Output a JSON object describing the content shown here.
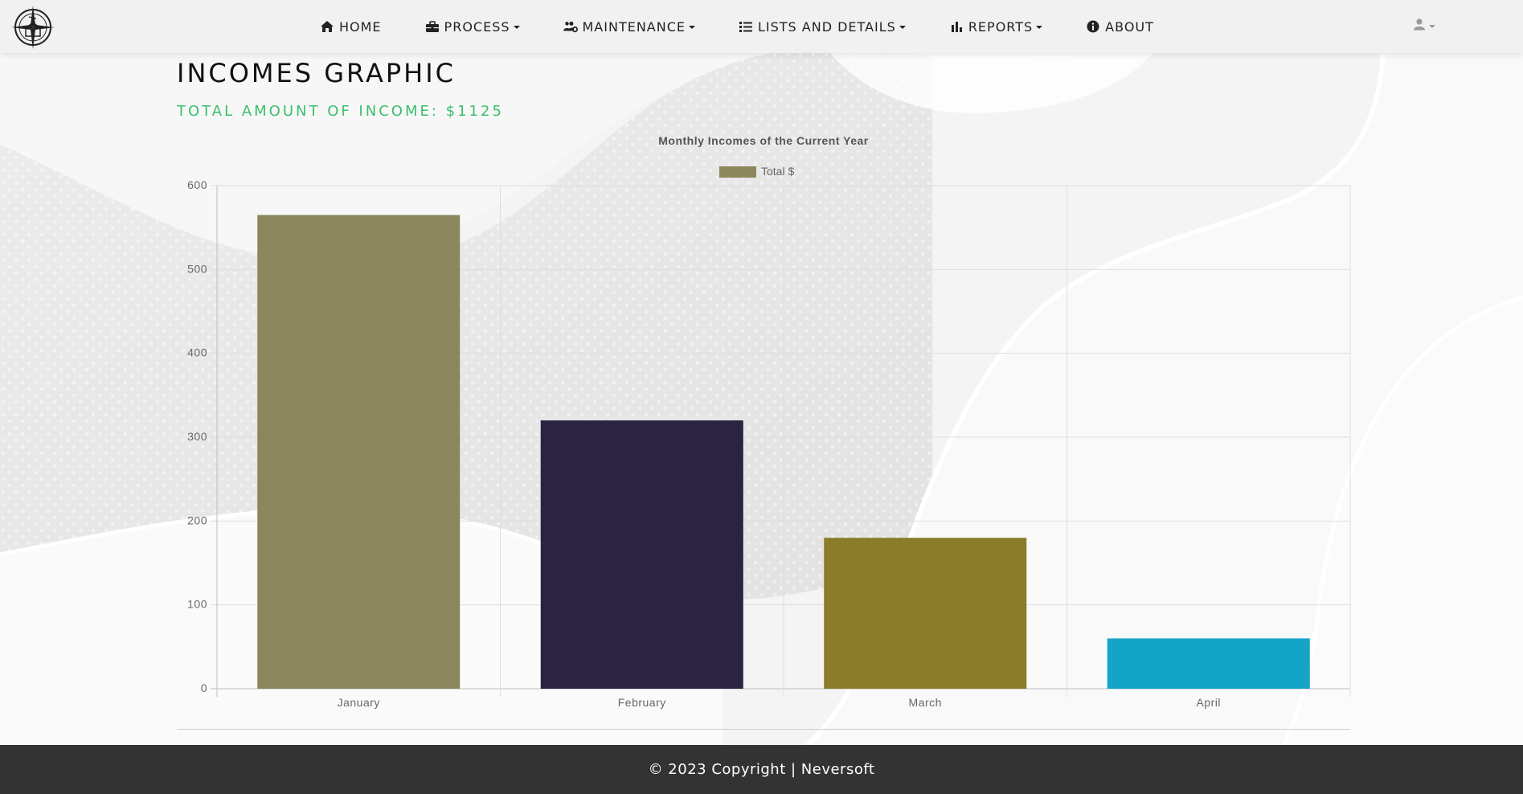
{
  "nav": {
    "items": [
      {
        "label": "HOME",
        "icon": "home-icon",
        "dropdown": false
      },
      {
        "label": "PROCESS",
        "icon": "toolbox-icon",
        "dropdown": true
      },
      {
        "label": "MAINTENANCE",
        "icon": "users-gear-icon",
        "dropdown": true
      },
      {
        "label": "LISTS AND DETAILS",
        "icon": "list-icon",
        "dropdown": true
      },
      {
        "label": "REPORTS",
        "icon": "bar-chart-icon",
        "dropdown": true
      },
      {
        "label": "ABOUT",
        "icon": "info-icon",
        "dropdown": false
      }
    ],
    "user_icon": "user-icon"
  },
  "page": {
    "title": "INCOMES GRAPHIC",
    "total": "TOTAL AMOUNT OF INCOME: $1125"
  },
  "chart_data": {
    "type": "bar",
    "title": "Monthly Incomes of the Current Year",
    "categories": [
      "January",
      "February",
      "March",
      "April"
    ],
    "series": [
      {
        "name": "Total $",
        "values": [
          565,
          320,
          180,
          60
        ]
      }
    ],
    "bar_colors": [
      "#8c865c",
      "#2a2342",
      "#8a7c28",
      "#14a4c8"
    ],
    "legend_color": "#8c865c",
    "legend_position": "top",
    "ylim": [
      0,
      600
    ],
    "yticks": [
      0,
      100,
      200,
      300,
      400,
      500,
      600
    ],
    "grid": true,
    "xlabel": "",
    "ylabel": ""
  },
  "footer": {
    "text": "© 2023 Copyright | Neversoft"
  },
  "colors": {
    "accent_green": "#3bbf6a",
    "footer_bg": "#333333"
  }
}
